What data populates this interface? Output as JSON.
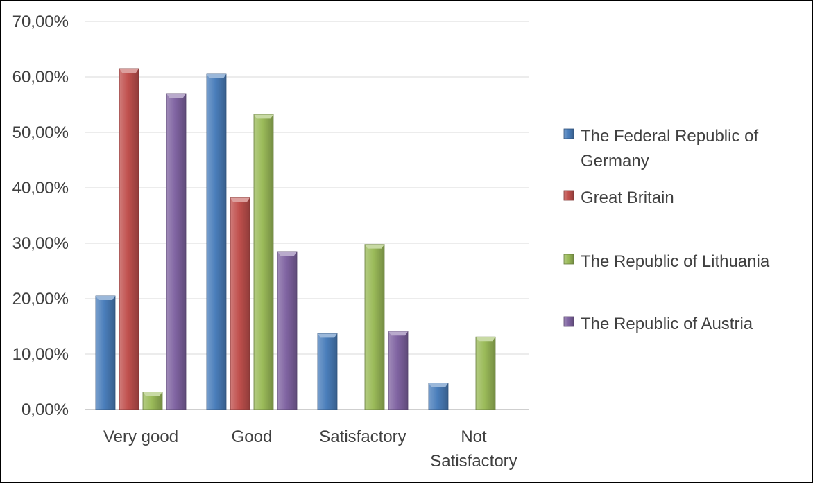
{
  "chart_data": {
    "type": "bar",
    "title": "",
    "xlabel": "",
    "ylabel": "",
    "categories": [
      "Very good",
      "Good",
      "Satisfactory",
      "Not Satisfactory"
    ],
    "category_lines": [
      [
        "Very good"
      ],
      [
        "Good"
      ],
      [
        "Satisfactory"
      ],
      [
        "Not",
        "Satisfactory"
      ]
    ],
    "ylim": [
      0,
      0.7
    ],
    "yticks": [
      0,
      0.1,
      0.2,
      0.3,
      0.4,
      0.5,
      0.6,
      0.7
    ],
    "ytick_labels": [
      "0,00%",
      "10,00%",
      "20,00%",
      "30,00%",
      "40,00%",
      "50,00%",
      "60,00%",
      "70,00%"
    ],
    "grid": true,
    "legend_position": "right",
    "series": [
      {
        "name": "The Federal Republic of Germany",
        "legend_lines": [
          "The Federal Republic of",
          "Germany"
        ],
        "color": "#4a7ebb",
        "values": [
          0.205,
          0.605,
          0.137,
          0.048
        ]
      },
      {
        "name": "Great Britain",
        "legend_lines": [
          "Great Britain"
        ],
        "color": "#c0504d",
        "values": [
          0.615,
          0.382,
          null,
          null
        ]
      },
      {
        "name": "The Republic of Lithuania",
        "legend_lines": [
          "The Republic of Lithuania"
        ],
        "color": "#9bbb59",
        "values": [
          0.032,
          0.532,
          0.298,
          0.131
        ]
      },
      {
        "name": "The  Republic of Austria",
        "legend_lines": [
          "The  Republic of Austria"
        ],
        "color": "#8064a2",
        "values": [
          0.57,
          0.285,
          0.141,
          null
        ]
      }
    ]
  }
}
